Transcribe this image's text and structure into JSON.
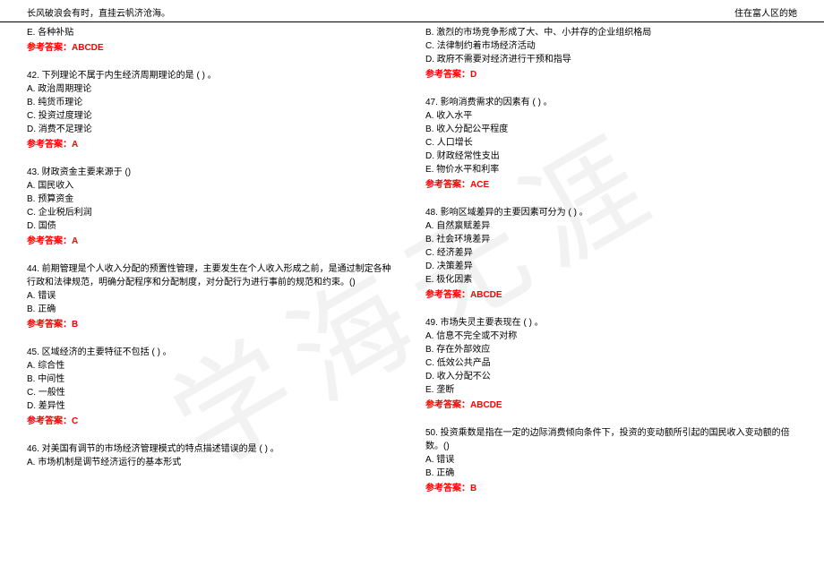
{
  "header": {
    "left": "长风破浪会有时，直挂云帆济沧海。",
    "right": "住在富人区的她"
  },
  "watermark": "学海无涯",
  "answer_label": "参考答案：",
  "left_column": {
    "block0": {
      "lines": [
        "E. 各种补贴"
      ],
      "answer": "ABCDE"
    },
    "q42": {
      "stem": "42. 下列理论不属于内生经济周期理论的是 ( ) 。",
      "opts": [
        "A. 政治周期理论",
        "B. 纯货币理论",
        "C. 投资过度理论",
        "D. 消费不足理论"
      ],
      "answer": "A"
    },
    "q43": {
      "stem": "43. 财政资金主要来源于 ()",
      "opts": [
        "A. 国民收入",
        "B. 预算资金",
        "C. 企业税后利润",
        "D. 国债"
      ],
      "answer": "A"
    },
    "q44": {
      "stem": "44. 前期管理是个人收入分配的预置性管理，主要发生在个人收入形成之前，是通过制定各种行政和法律规范，明确分配程序和分配制度，对分配行为进行事前的规范和约束。()",
      "opts": [
        "A. 错误",
        "B. 正确"
      ],
      "answer": "B"
    },
    "q45": {
      "stem": "45. 区域经济的主要特征不包括 ( ) 。",
      "opts": [
        "A. 综合性",
        "B. 中间性",
        "C. 一般性",
        "D. 差异性"
      ],
      "answer": "C"
    },
    "q46": {
      "stem": "46. 对美国有调节的市场经济管理模式的特点描述错误的是 ( ) 。",
      "opts": [
        "A. 市场机制是调节经济运行的基本形式"
      ]
    }
  },
  "right_column": {
    "block0": {
      "lines": [
        "B. 激烈的市场竞争形成了大、中、小并存的企业组织格局",
        "C. 法律制约着市场经济活动",
        "D. 政府不需要对经济进行干预和指导"
      ],
      "answer": "D"
    },
    "q47": {
      "stem": "47. 影响消费需求的因素有 ( ) 。",
      "opts": [
        "A. 收入水平",
        "B. 收入分配公平程度",
        "C. 人口增长",
        "D. 财政经常性支出",
        "E. 物价水平和利率"
      ],
      "answer": "ACE"
    },
    "q48": {
      "stem": "48. 影响区域差异的主要因素可分为 ( ) 。",
      "opts": [
        "A. 自然禀赋差异",
        "B. 社会环境差异",
        "C. 经济差异",
        "D. 决策差异",
        "E. 极化因素"
      ],
      "answer": "ABCDE"
    },
    "q49": {
      "stem": "49. 市场失灵主要表现在 ( ) 。",
      "opts": [
        "A. 信息不完全或不对称",
        "B. 存在外部效应",
        "C. 低效公共产品",
        "D. 收入分配不公",
        "E. 垄断"
      ],
      "answer": "ABCDE"
    },
    "q50": {
      "stem": "50. 投资乘数是指在一定的边际消费倾向条件下，投资的变动额所引起的国民收入变动额的倍数。()",
      "opts": [
        "A. 错误",
        "B. 正确"
      ],
      "answer": "B"
    }
  }
}
